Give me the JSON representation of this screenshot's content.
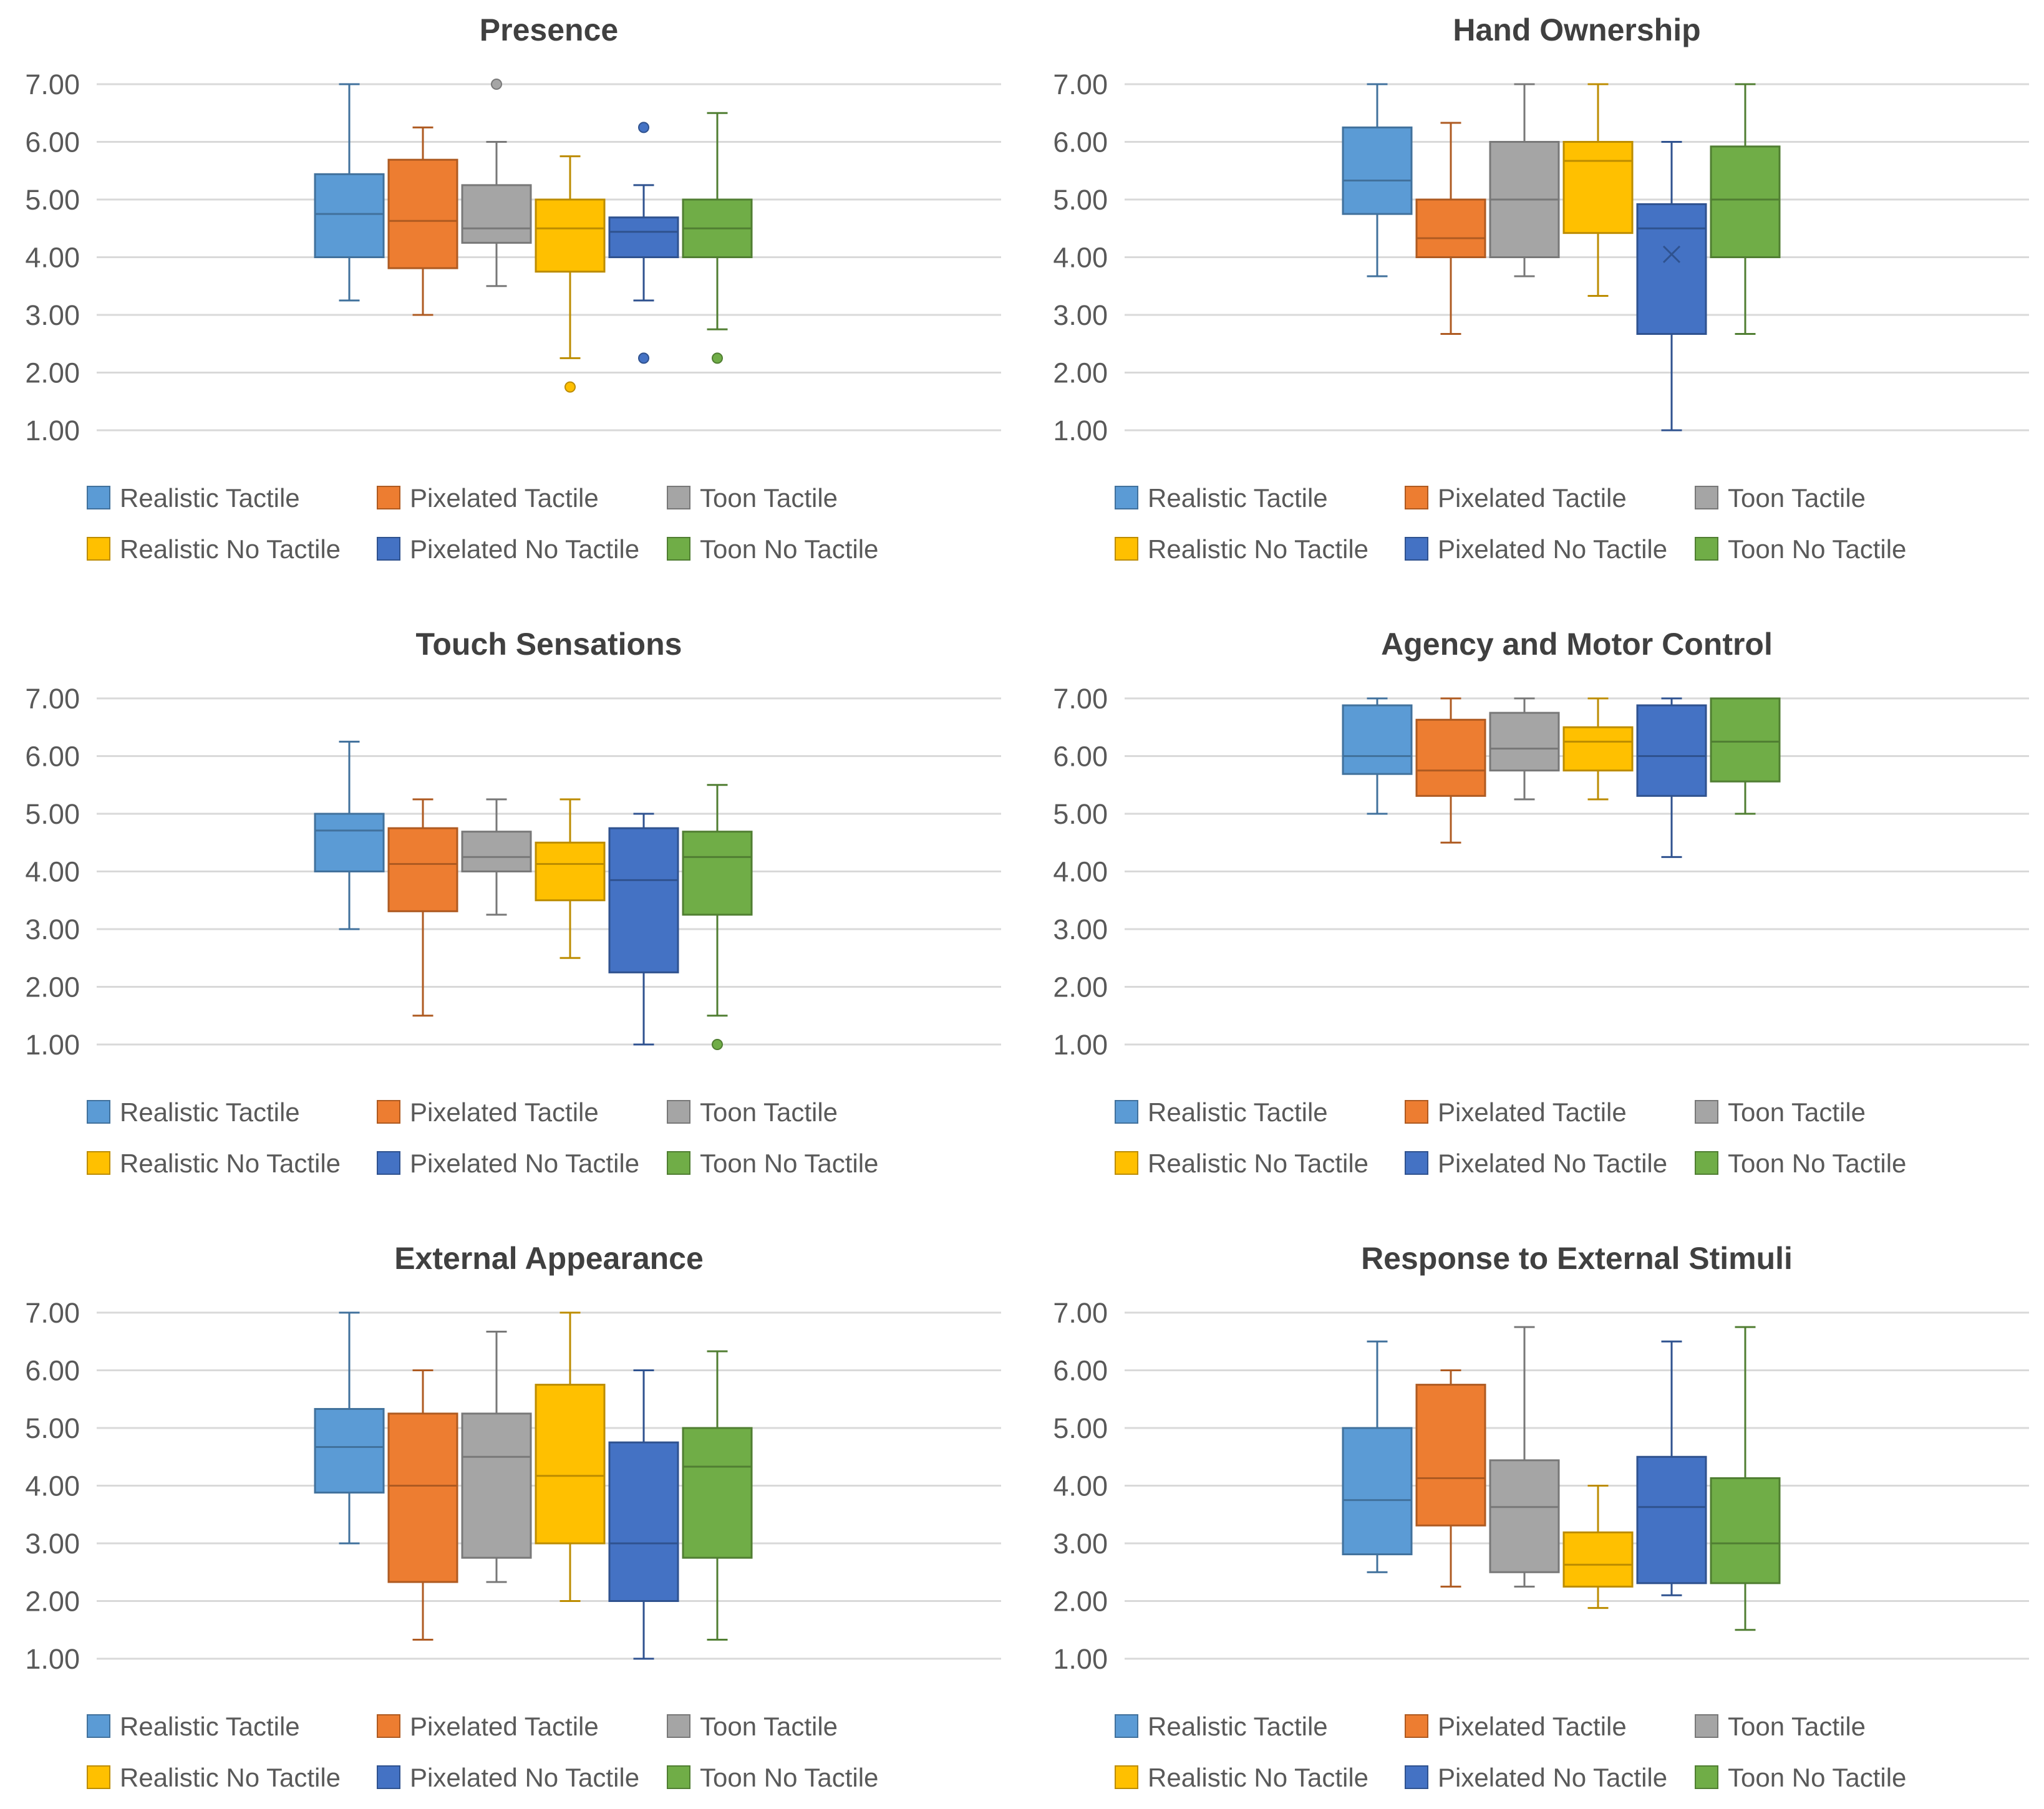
{
  "series_names": [
    "Realistic Tactile",
    "Pixelated Tactile",
    "Toon Tactile",
    "Realistic No Tactile",
    "Pixelated No Tactile",
    "Toon No Tactile"
  ],
  "colors": {
    "fills": [
      "#5B9BD5",
      "#ED7D31",
      "#A5A5A5",
      "#FFC000",
      "#4472C4",
      "#70AD47"
    ],
    "strokes": [
      "#41719C",
      "#AE5A21",
      "#787878",
      "#BC8C00",
      "#2F528F",
      "#507E32"
    ],
    "grid": "#D9D9D9",
    "text": "#595959",
    "title": "#404040"
  },
  "chart_data": [
    {
      "type": "box",
      "title": "Presence",
      "ylim": [
        1,
        7
      ],
      "yticks": [
        "1.00",
        "2.00",
        "3.00",
        "4.00",
        "5.00",
        "6.00",
        "7.00"
      ],
      "legend": "bottom",
      "series": [
        {
          "name": "Realistic Tactile",
          "whisker_low": 3.25,
          "q1": 4.0,
          "median": 4.75,
          "q3": 5.44,
          "whisker_high": 7.0,
          "outliers": []
        },
        {
          "name": "Pixelated Tactile",
          "whisker_low": 3.0,
          "q1": 3.81,
          "median": 4.63,
          "q3": 5.69,
          "whisker_high": 6.25,
          "outliers": []
        },
        {
          "name": "Toon Tactile",
          "whisker_low": 3.5,
          "q1": 4.25,
          "median": 4.5,
          "q3": 5.25,
          "whisker_high": 6.0,
          "outliers": [
            7.0
          ]
        },
        {
          "name": "Realistic No Tactile",
          "whisker_low": 2.25,
          "q1": 3.75,
          "median": 4.5,
          "q3": 5.0,
          "whisker_high": 5.75,
          "outliers": [
            1.75
          ]
        },
        {
          "name": "Pixelated No Tactile",
          "whisker_low": 3.25,
          "q1": 4.0,
          "median": 4.44,
          "q3": 4.69,
          "whisker_high": 5.25,
          "outliers": [
            6.25,
            2.25
          ]
        },
        {
          "name": "Toon No Tactile",
          "whisker_low": 2.75,
          "q1": 4.0,
          "median": 4.5,
          "q3": 5.0,
          "whisker_high": 6.5,
          "outliers": [
            2.25
          ]
        }
      ]
    },
    {
      "type": "box",
      "title": "Hand Ownership",
      "ylim": [
        1,
        7
      ],
      "yticks": [
        "1.00",
        "2.00",
        "3.00",
        "4.00",
        "5.00",
        "6.00",
        "7.00"
      ],
      "legend": "bottom",
      "series": [
        {
          "name": "Realistic Tactile",
          "whisker_low": 3.67,
          "q1": 4.75,
          "median": 5.33,
          "q3": 6.25,
          "whisker_high": 7.0,
          "outliers": []
        },
        {
          "name": "Pixelated Tactile",
          "whisker_low": 2.67,
          "q1": 4.0,
          "median": 4.33,
          "q3": 5.0,
          "whisker_high": 6.33,
          "outliers": []
        },
        {
          "name": "Toon Tactile",
          "whisker_low": 3.67,
          "q1": 4.0,
          "median": 5.0,
          "q3": 6.0,
          "whisker_high": 7.0,
          "outliers": []
        },
        {
          "name": "Realistic No Tactile",
          "whisker_low": 3.33,
          "q1": 4.42,
          "median": 5.67,
          "q3": 6.0,
          "whisker_high": 7.0,
          "outliers": []
        },
        {
          "name": "Pixelated No Tactile",
          "whisker_low": 1.0,
          "q1": 2.67,
          "median": 4.5,
          "q3": 4.92,
          "whisker_high": 6.0,
          "outliers": [],
          "mean": 4.05
        },
        {
          "name": "Toon No Tactile",
          "whisker_low": 2.67,
          "q1": 4.0,
          "median": 5.0,
          "q3": 5.92,
          "whisker_high": 7.0,
          "outliers": []
        }
      ]
    },
    {
      "type": "box",
      "title": "Touch Sensations",
      "ylim": [
        1,
        7
      ],
      "yticks": [
        "1.00",
        "2.00",
        "3.00",
        "4.00",
        "5.00",
        "6.00",
        "7.00"
      ],
      "legend": "bottom",
      "series": [
        {
          "name": "Realistic Tactile",
          "whisker_low": 3.0,
          "q1": 4.0,
          "median": 4.71,
          "q3": 5.0,
          "whisker_high": 6.25,
          "outliers": []
        },
        {
          "name": "Pixelated Tactile",
          "whisker_low": 1.5,
          "q1": 3.31,
          "median": 4.13,
          "q3": 4.75,
          "whisker_high": 5.25,
          "outliers": []
        },
        {
          "name": "Toon Tactile",
          "whisker_low": 3.25,
          "q1": 4.0,
          "median": 4.25,
          "q3": 4.69,
          "whisker_high": 5.25,
          "outliers": []
        },
        {
          "name": "Realistic No Tactile",
          "whisker_low": 2.5,
          "q1": 3.5,
          "median": 4.13,
          "q3": 4.5,
          "whisker_high": 5.25,
          "outliers": []
        },
        {
          "name": "Pixelated No Tactile",
          "whisker_low": 1.0,
          "q1": 2.25,
          "median": 3.85,
          "q3": 4.75,
          "whisker_high": 5.0,
          "outliers": []
        },
        {
          "name": "Toon No Tactile",
          "whisker_low": 1.5,
          "q1": 3.25,
          "median": 4.25,
          "q3": 4.69,
          "whisker_high": 5.5,
          "outliers": [
            1.0
          ]
        }
      ]
    },
    {
      "type": "box",
      "title": "Agency and Motor Control",
      "ylim": [
        1,
        7
      ],
      "yticks": [
        "1.00",
        "2.00",
        "3.00",
        "4.00",
        "5.00",
        "6.00",
        "7.00"
      ],
      "legend": "bottom",
      "series": [
        {
          "name": "Realistic Tactile",
          "whisker_low": 5.0,
          "q1": 5.69,
          "median": 6.0,
          "q3": 6.88,
          "whisker_high": 7.0,
          "outliers": []
        },
        {
          "name": "Pixelated Tactile",
          "whisker_low": 4.5,
          "q1": 5.31,
          "median": 5.75,
          "q3": 6.63,
          "whisker_high": 7.0,
          "outliers": []
        },
        {
          "name": "Toon Tactile",
          "whisker_low": 5.25,
          "q1": 5.75,
          "median": 6.13,
          "q3": 6.75,
          "whisker_high": 7.0,
          "outliers": []
        },
        {
          "name": "Realistic No Tactile",
          "whisker_low": 5.25,
          "q1": 5.75,
          "median": 6.25,
          "q3": 6.5,
          "whisker_high": 7.0,
          "outliers": []
        },
        {
          "name": "Pixelated No Tactile",
          "whisker_low": 4.25,
          "q1": 5.31,
          "median": 6.0,
          "q3": 6.88,
          "whisker_high": 7.0,
          "outliers": []
        },
        {
          "name": "Toon No Tactile",
          "whisker_low": 5.0,
          "q1": 5.56,
          "median": 6.25,
          "q3": 7.0,
          "whisker_high": 7.0,
          "outliers": []
        }
      ]
    },
    {
      "type": "box",
      "title": "External Appearance",
      "ylim": [
        1,
        7
      ],
      "yticks": [
        "1.00",
        "2.00",
        "3.00",
        "4.00",
        "5.00",
        "6.00",
        "7.00"
      ],
      "legend": "bottom",
      "series": [
        {
          "name": "Realistic Tactile",
          "whisker_low": 3.0,
          "q1": 3.88,
          "median": 4.67,
          "q3": 5.33,
          "whisker_high": 7.0,
          "outliers": []
        },
        {
          "name": "Pixelated Tactile",
          "whisker_low": 1.33,
          "q1": 2.33,
          "median": 4.0,
          "q3": 5.25,
          "whisker_high": 6.0,
          "outliers": []
        },
        {
          "name": "Toon Tactile",
          "whisker_low": 2.33,
          "q1": 2.75,
          "median": 4.5,
          "q3": 5.25,
          "whisker_high": 6.67,
          "outliers": []
        },
        {
          "name": "Realistic No Tactile",
          "whisker_low": 2.0,
          "q1": 3.0,
          "median": 4.17,
          "q3": 5.75,
          "whisker_high": 7.0,
          "outliers": []
        },
        {
          "name": "Pixelated No Tactile",
          "whisker_low": 1.0,
          "q1": 2.0,
          "median": 3.0,
          "q3": 4.75,
          "whisker_high": 6.0,
          "outliers": []
        },
        {
          "name": "Toon No Tactile",
          "whisker_low": 1.33,
          "q1": 2.75,
          "median": 4.33,
          "q3": 5.0,
          "whisker_high": 6.33,
          "outliers": []
        }
      ]
    },
    {
      "type": "box",
      "title": "Response to External Stimuli",
      "ylim": [
        1,
        7
      ],
      "yticks": [
        "1.00",
        "2.00",
        "3.00",
        "4.00",
        "5.00",
        "6.00",
        "7.00"
      ],
      "legend": "bottom",
      "series": [
        {
          "name": "Realistic Tactile",
          "whisker_low": 2.5,
          "q1": 2.81,
          "median": 3.75,
          "q3": 5.0,
          "whisker_high": 6.5,
          "outliers": []
        },
        {
          "name": "Pixelated Tactile",
          "whisker_low": 2.25,
          "q1": 3.31,
          "median": 4.13,
          "q3": 5.75,
          "whisker_high": 6.0,
          "outliers": []
        },
        {
          "name": "Toon Tactile",
          "whisker_low": 2.25,
          "q1": 2.5,
          "median": 3.63,
          "q3": 4.44,
          "whisker_high": 6.75,
          "outliers": []
        },
        {
          "name": "Realistic No Tactile",
          "whisker_low": 1.88,
          "q1": 2.25,
          "median": 2.63,
          "q3": 3.19,
          "whisker_high": 4.0,
          "outliers": []
        },
        {
          "name": "Pixelated No Tactile",
          "whisker_low": 2.1,
          "q1": 2.31,
          "median": 3.63,
          "q3": 4.5,
          "whisker_high": 6.5,
          "outliers": []
        },
        {
          "name": "Toon No Tactile",
          "whisker_low": 1.5,
          "q1": 2.31,
          "median": 3.0,
          "q3": 4.13,
          "whisker_high": 6.75,
          "outliers": []
        }
      ]
    }
  ]
}
